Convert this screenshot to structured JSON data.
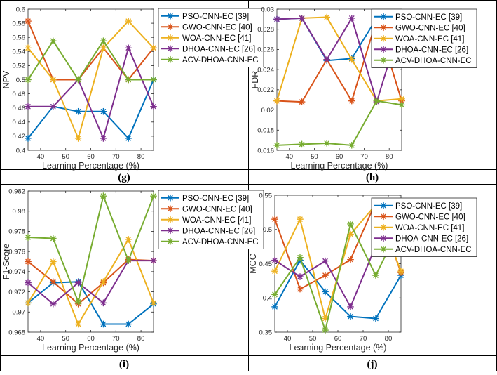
{
  "figure": {
    "series_colors": [
      "#0072BD",
      "#D95319",
      "#EDB120",
      "#7E2F8E",
      "#77AC30"
    ],
    "marker": "asterisk"
  },
  "chart_data": [
    {
      "type": "line",
      "panel": "(g)",
      "xlabel": "Learning Percentage (%)",
      "ylabel": "NPV",
      "xlim": [
        35,
        85
      ],
      "ylim": [
        0.4,
        0.6
      ],
      "xticks": [
        40,
        50,
        60,
        70,
        80
      ],
      "yticks": [
        0.4,
        0.42,
        0.44,
        0.46,
        0.48,
        0.5,
        0.52,
        0.54,
        0.56,
        0.58,
        0.6
      ],
      "ytick_labels": [
        "0.4",
        "0.42",
        "0.44",
        "0.46",
        "0.48",
        "0.5",
        "0.52",
        "0.54",
        "0.56",
        "0.58",
        "0.6"
      ],
      "x": [
        35,
        45,
        55,
        65,
        75,
        85
      ],
      "legend_position": "top-right outside",
      "series": [
        {
          "name": "PSO-CNN-EC [39]",
          "values": [
            0.417,
            0.462,
            0.455,
            0.455,
            0.417,
            0.5
          ]
        },
        {
          "name": "GWO-CNN-EC [40]",
          "values": [
            0.583,
            0.5,
            0.5,
            0.545,
            0.5,
            0.545
          ]
        },
        {
          "name": "WOA-CNN-EC [41]",
          "values": [
            0.545,
            0.5,
            0.417,
            0.545,
            0.583,
            0.545
          ]
        },
        {
          "name": "DHOA-CNN-EC [26]",
          "values": [
            0.462,
            0.462,
            0.5,
            0.417,
            0.545,
            0.462
          ]
        },
        {
          "name": "ACV-DHOA-CNN-EC",
          "values": [
            0.5,
            0.555,
            0.5,
            0.555,
            0.5,
            0.5
          ]
        }
      ]
    },
    {
      "type": "line",
      "panel": "(h)",
      "xlabel": "Learning Percentage (%)",
      "ylabel": "FDR",
      "xlim": [
        35,
        85
      ],
      "ylim": [
        0.016,
        0.03
      ],
      "xticks": [
        40,
        50,
        60,
        70,
        80
      ],
      "yticks": [
        0.016,
        0.018,
        0.02,
        0.022,
        0.024,
        0.026,
        0.028,
        0.03
      ],
      "ytick_labels": [
        "0.016",
        "0.018",
        "0.02",
        "0.022",
        "0.024",
        "0.026",
        "0.028",
        "0.03"
      ],
      "x": [
        35,
        45,
        55,
        65,
        75,
        85
      ],
      "legend_position": "top-right outside",
      "series": [
        {
          "name": "PSO-CNN-EC [39]",
          "values": [
            0.029,
            0.0291,
            0.0249,
            0.0251,
            0.0291,
            0.0251
          ]
        },
        {
          "name": "GWO-CNN-EC [40]",
          "values": [
            0.0209,
            0.0208,
            0.025,
            0.0209,
            0.029,
            0.0209
          ]
        },
        {
          "name": "WOA-CNN-EC [41]",
          "values": [
            0.0209,
            0.0291,
            0.0292,
            0.025,
            0.0209,
            0.0211
          ]
        },
        {
          "name": "DHOA-CNN-EC [26]",
          "values": [
            0.029,
            0.0291,
            0.025,
            0.0291,
            0.0208,
            0.0289
          ]
        },
        {
          "name": "ACV-DHOA-CNN-EC",
          "values": [
            0.0165,
            0.0166,
            0.0167,
            0.0165,
            0.0209,
            0.0205
          ]
        }
      ]
    },
    {
      "type": "line",
      "panel": "(i)",
      "xlabel": "Learning Percentage (%)",
      "ylabel": "F1-Score",
      "xlim": [
        35,
        85
      ],
      "ylim": [
        0.968,
        0.982
      ],
      "xticks": [
        40,
        50,
        60,
        70,
        80
      ],
      "yticks": [
        0.968,
        0.97,
        0.972,
        0.974,
        0.976,
        0.978,
        0.98,
        0.982
      ],
      "ytick_labels": [
        "0.968",
        "0.97",
        "0.972",
        "0.974",
        "0.976",
        "0.978",
        "0.98",
        "0.982"
      ],
      "x": [
        35,
        45,
        55,
        65,
        75,
        85
      ],
      "legend_position": "top-right outside",
      "series": [
        {
          "name": "PSO-CNN-EC [39]",
          "values": [
            0.9709,
            0.9729,
            0.973,
            0.9688,
            0.9688,
            0.9708
          ]
        },
        {
          "name": "GWO-CNN-EC [40]",
          "values": [
            0.975,
            0.973,
            0.9708,
            0.9729,
            0.9752,
            0.9751
          ]
        },
        {
          "name": "WOA-CNN-EC [41]",
          "values": [
            0.9709,
            0.975,
            0.9688,
            0.973,
            0.9772,
            0.9709
          ]
        },
        {
          "name": "DHOA-CNN-EC [26]",
          "values": [
            0.9729,
            0.9708,
            0.9729,
            0.9709,
            0.9751,
            0.9751
          ]
        },
        {
          "name": "ACV-DHOA-CNN-EC",
          "values": [
            0.9774,
            0.9773,
            0.971,
            0.9815,
            0.9751,
            0.9815
          ]
        }
      ]
    },
    {
      "type": "line",
      "panel": "(j)",
      "xlabel": "Learning Percentage (%)",
      "ylabel": "MCC",
      "xlim": [
        35,
        85
      ],
      "ylim": [
        0.35,
        0.55
      ],
      "xticks": [
        40,
        50,
        60,
        70,
        80
      ],
      "yticks": [
        0.35,
        0.4,
        0.45,
        0.5,
        0.55
      ],
      "ytick_labels": [
        "0.35",
        "0.4",
        "0.45",
        "0.5",
        "0.55"
      ],
      "x": [
        35,
        45,
        55,
        65,
        75,
        85
      ],
      "legend_position": "top-right outside",
      "series": [
        {
          "name": "PSO-CNN-EC [39]",
          "values": [
            0.387,
            0.455,
            0.409,
            0.373,
            0.37,
            0.433
          ]
        },
        {
          "name": "GWO-CNN-EC [40]",
          "values": [
            0.515,
            0.413,
            0.433,
            0.456,
            0.54,
            0.437
          ]
        },
        {
          "name": "WOA-CNN-EC [41]",
          "values": [
            0.439,
            0.515,
            0.37,
            0.493,
            0.536,
            0.439
          ]
        },
        {
          "name": "DHOA-CNN-EC [26]",
          "values": [
            0.455,
            0.431,
            0.454,
            0.387,
            0.476,
            0.476
          ]
        },
        {
          "name": "ACV-DHOA-CNN-EC",
          "values": [
            0.405,
            0.459,
            0.353,
            0.508,
            0.433,
            0.508
          ]
        }
      ]
    }
  ]
}
